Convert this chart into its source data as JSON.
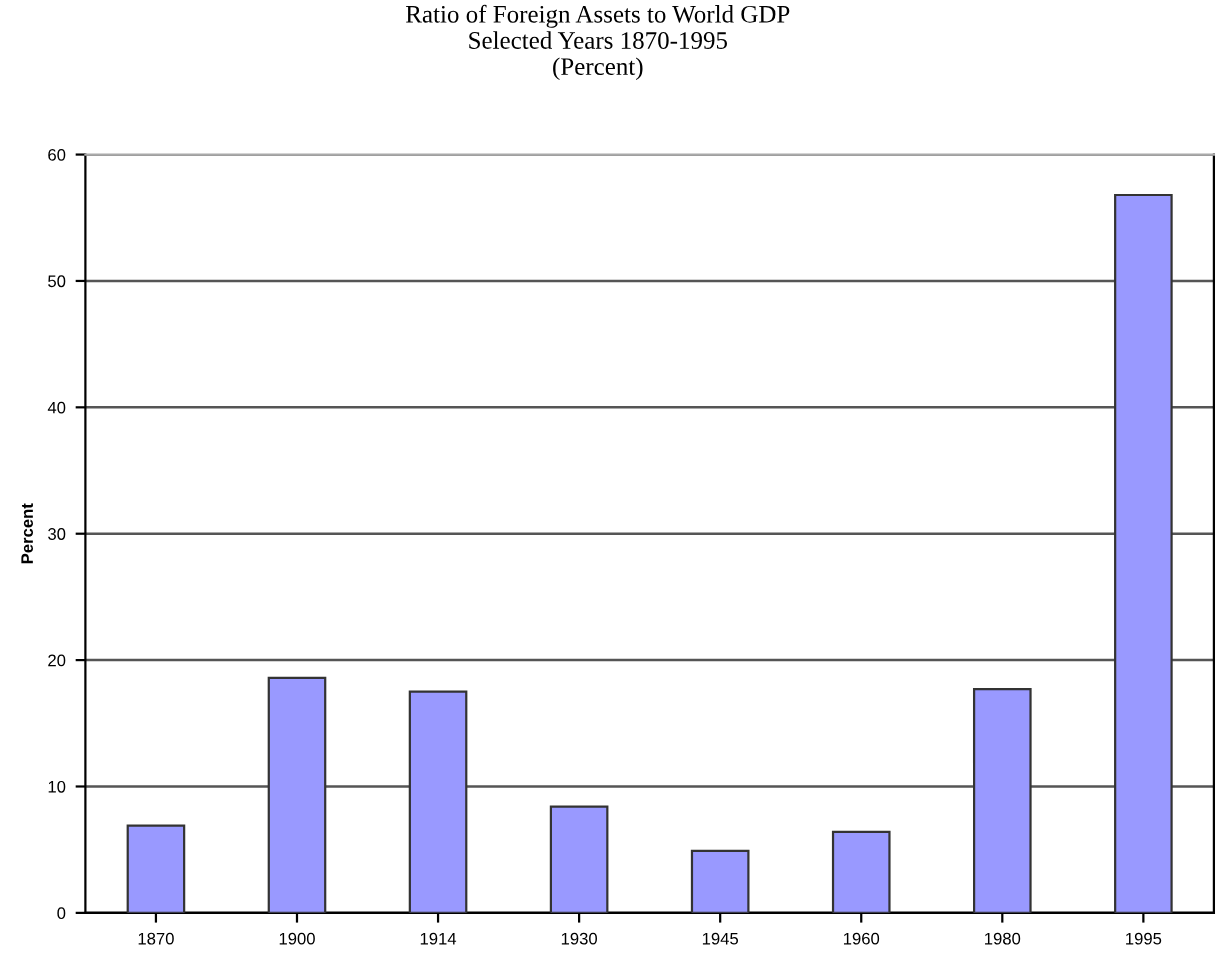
{
  "chart_data": {
    "type": "bar",
    "title": "Ratio of Foreign Assets to World GDP\nSelected Years 1870-1995\n(Percent)",
    "ylabel": "Percent",
    "categories": [
      "1870",
      "1900",
      "1914",
      "1930",
      "1945",
      "1960",
      "1980",
      "1995"
    ],
    "values": [
      6.9,
      18.6,
      17.5,
      8.4,
      4.9,
      6.4,
      17.7,
      56.8
    ],
    "color": "#9999ff",
    "ylim": [
      0,
      60
    ],
    "yticks": [
      0,
      10,
      20,
      30,
      40,
      50,
      60
    ],
    "grid": "y"
  }
}
